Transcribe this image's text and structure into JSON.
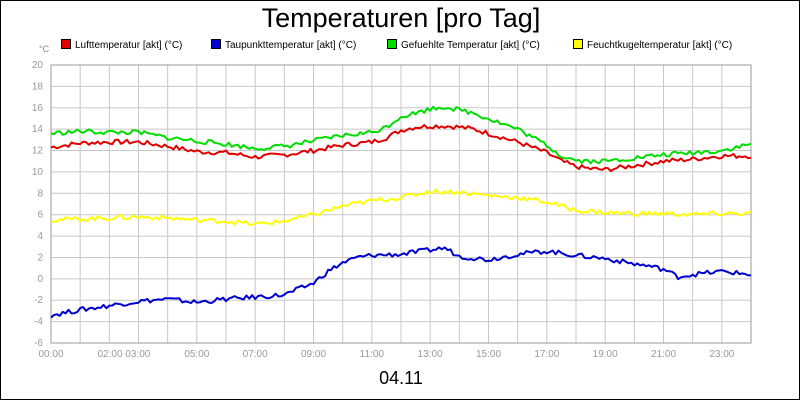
{
  "chart_data": {
    "type": "line",
    "title": "Temperaturen [pro Tag]",
    "ylabel_unit": "°C",
    "xlabel": "04.11",
    "ylim": [
      -6,
      20
    ],
    "yticks": [
      -6,
      -4,
      -2,
      0,
      2,
      4,
      6,
      8,
      10,
      12,
      14,
      16,
      18,
      20
    ],
    "xlim_hours": [
      0,
      24
    ],
    "xticks": [
      {
        "h": 0,
        "label": "00:00"
      },
      {
        "h": 2.5,
        "label": "02:00 03:00"
      },
      {
        "h": 5,
        "label": "05:00"
      },
      {
        "h": 7,
        "label": "07:00"
      },
      {
        "h": 9,
        "label": "09:00"
      },
      {
        "h": 11,
        "label": "11:00"
      },
      {
        "h": 13,
        "label": "13:00"
      },
      {
        "h": 15,
        "label": "15:00"
      },
      {
        "h": 17,
        "label": "17:00"
      },
      {
        "h": 19,
        "label": "19:00"
      },
      {
        "h": 21,
        "label": "21:00"
      },
      {
        "h": 23,
        "label": "23:00"
      }
    ],
    "grid": true,
    "series": [
      {
        "name": "Lufttemperatur [akt] (°C)",
        "color": "#e00000",
        "x": [
          0,
          1,
          2,
          3,
          4,
          5,
          6,
          7,
          8,
          9,
          10,
          11,
          11.5,
          12,
          12.5,
          13,
          13.5,
          14,
          14.5,
          15,
          16,
          17,
          17.5,
          18,
          18.5,
          19,
          20,
          21,
          22,
          23,
          24
        ],
        "y": [
          12.3,
          12.7,
          12.8,
          12.8,
          12.4,
          11.9,
          11.8,
          11.4,
          11.6,
          12.0,
          12.5,
          12.8,
          13.2,
          13.9,
          14.2,
          14.3,
          14.3,
          14.2,
          14.0,
          13.6,
          12.8,
          11.8,
          11.0,
          10.5,
          10.3,
          10.2,
          10.6,
          11.0,
          11.2,
          11.5,
          11.5
        ]
      },
      {
        "name": "Taupunkttemperatur [akt] (°C)",
        "color": "#0000d0",
        "x": [
          0,
          1,
          2,
          3,
          4,
          5,
          6,
          7,
          8,
          9,
          9.5,
          10,
          10.5,
          11,
          12,
          13,
          13.5,
          14,
          15,
          16,
          17,
          18,
          19,
          20,
          20.5,
          21,
          21.5,
          22,
          23,
          24
        ],
        "y": [
          -3.4,
          -2.9,
          -2.5,
          -2.1,
          -1.9,
          -2.2,
          -1.9,
          -1.7,
          -1.5,
          -0.4,
          0.7,
          1.5,
          2.0,
          2.2,
          2.3,
          2.7,
          2.9,
          2.1,
          1.8,
          2.3,
          2.6,
          2.2,
          1.9,
          1.4,
          1.2,
          0.9,
          0.2,
          0.4,
          0.7,
          0.4
        ]
      },
      {
        "name": "Gefuehlte Temperatur [akt] (°C)",
        "color": "#00dd00",
        "x": [
          0,
          1,
          2,
          3,
          4,
          5,
          6,
          7,
          8,
          9,
          10,
          11,
          11.5,
          12,
          12.5,
          13,
          13.5,
          14,
          14.5,
          15,
          16,
          17,
          17.5,
          18,
          18.5,
          19,
          20,
          21,
          22,
          23,
          24
        ],
        "y": [
          13.6,
          13.8,
          13.7,
          13.7,
          13.2,
          12.9,
          12.6,
          12.2,
          12.4,
          12.9,
          13.4,
          13.7,
          14.2,
          15.2,
          15.5,
          15.9,
          16.1,
          15.8,
          15.5,
          15.0,
          14.0,
          12.5,
          11.5,
          11.1,
          11.0,
          11.0,
          11.3,
          11.6,
          11.8,
          12.0,
          12.6
        ]
      },
      {
        "name": "Feuchtkugeltemperatur [akt] (°C)",
        "color": "#ffff00",
        "x": [
          0,
          1,
          2,
          3,
          4,
          5,
          6,
          7,
          8,
          9,
          10,
          11,
          12,
          13,
          14,
          15,
          16,
          17,
          18,
          19,
          20,
          21,
          22,
          23,
          24
        ],
        "y": [
          5.5,
          5.6,
          5.7,
          5.8,
          5.7,
          5.5,
          5.4,
          5.1,
          5.4,
          6.0,
          6.8,
          7.3,
          7.6,
          8.2,
          8.1,
          7.8,
          7.6,
          7.2,
          6.4,
          6.2,
          6.1,
          6.1,
          6.0,
          6.1,
          6.1
        ]
      }
    ]
  }
}
